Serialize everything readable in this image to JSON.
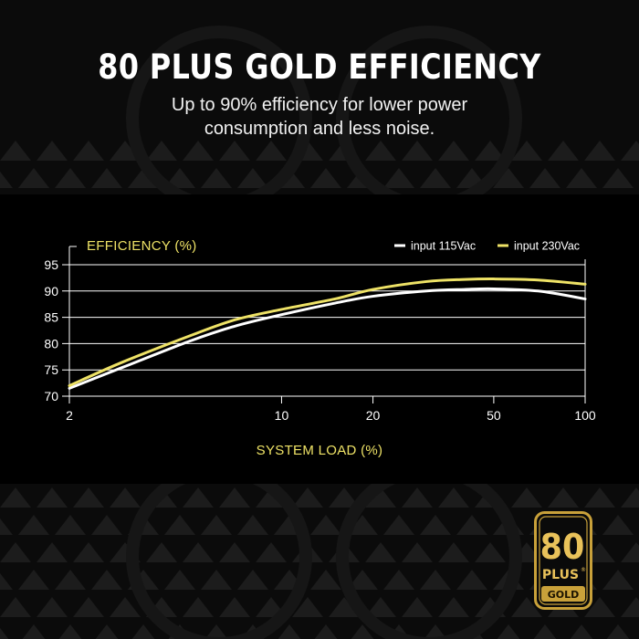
{
  "headline": "80 PLUS GOLD EFFICIENCY",
  "subheadline": [
    "Up to 90% efficiency for lower power",
    "consumption and less noise."
  ],
  "colors": {
    "accent_yellow": "#eee266",
    "line_115": "#ffffff",
    "line_230": "#eee266",
    "badge_gold": "#c9a13a"
  },
  "chart_data": {
    "type": "line",
    "ylabel": "EFFICIENCY (%)",
    "xlabel": "SYSTEM LOAD (%)",
    "x_scale": "log",
    "x_ticks": [
      2,
      10,
      20,
      50,
      100
    ],
    "y_ticks": [
      70,
      75,
      80,
      85,
      90,
      95
    ],
    "ylim": [
      70,
      95
    ],
    "xlim": [
      2,
      100
    ],
    "grid": true,
    "legend_position": "top-right",
    "series": [
      {
        "name": "input 115Vac",
        "x": [
          2,
          3,
          5,
          7,
          10,
          15,
          20,
          30,
          40,
          50,
          70,
          100
        ],
        "y": [
          71.5,
          75.5,
          80.5,
          83.3,
          85.5,
          87.7,
          89.0,
          90.0,
          90.3,
          90.4,
          90.0,
          88.5
        ]
      },
      {
        "name": "input 230Vac",
        "x": [
          2,
          3,
          5,
          7,
          10,
          15,
          20,
          30,
          40,
          50,
          70,
          100
        ],
        "y": [
          72.0,
          76.5,
          81.5,
          84.5,
          86.5,
          88.5,
          90.3,
          91.8,
          92.2,
          92.3,
          92.1,
          91.3
        ]
      }
    ]
  },
  "badge": {
    "number": "80",
    "line": "PLUS",
    "tier": "GOLD",
    "mark": "®"
  }
}
